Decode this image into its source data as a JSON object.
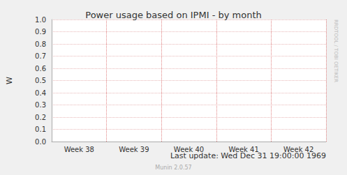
{
  "chart_data": {
    "type": "line",
    "title": "Power usage based on IPMI - by month",
    "y_label": "W",
    "categories": [
      "Week 38",
      "Week 39",
      "Week 40",
      "Week 41",
      "Week 42"
    ],
    "series": [],
    "ylim": [
      0,
      1
    ],
    "yticks": [
      {
        "value": 0,
        "label": "0.0"
      },
      0.1,
      0.2,
      0.3,
      0.4,
      0.5,
      0.6,
      0.7,
      0.8,
      0.9,
      {
        "value": 1,
        "label": "1.0"
      }
    ],
    "grid": true,
    "annotations": [
      "Last update: Wed Dec 31 19:00:00 1969",
      "Munin 2.0.57",
      "RRDTOOL / TOBI OETIKER"
    ]
  }
}
